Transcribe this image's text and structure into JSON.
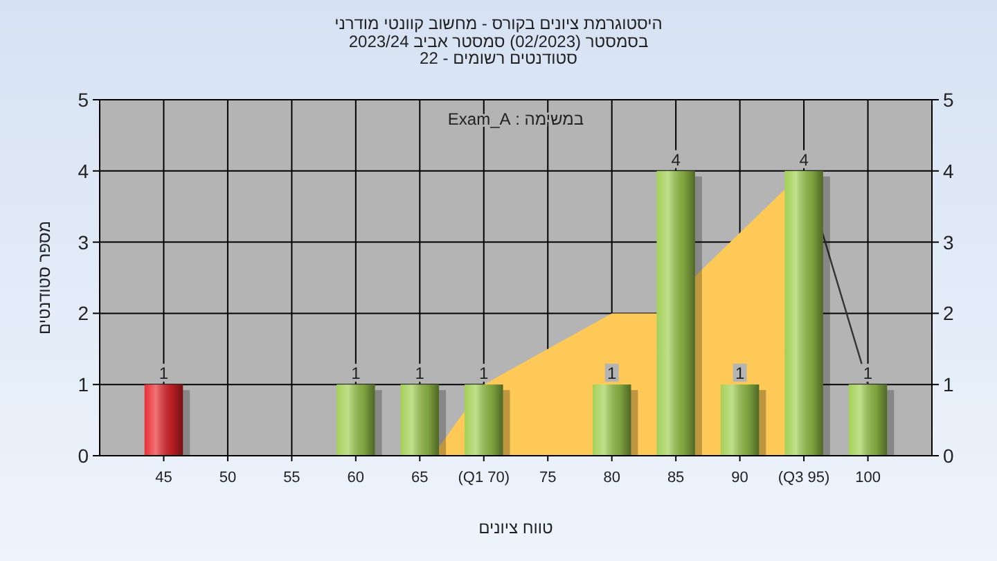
{
  "chart_data": {
    "type": "bar",
    "title": "היסטוגרמת ציונים בקורס - מחשוב קוונטי מודרני",
    "subtitle": "בסמסטר  (02/2023)  סמסטר אביב 2023/24\nסטודנטים רשומים - 22",
    "xlabel": "טווח ציונים",
    "ylabel": "מספר סטודנטים",
    "annotations": [
      "במשימה : Exam_A"
    ],
    "xlim": [
      40,
      105
    ],
    "xticks": [
      45,
      50,
      55,
      60,
      65,
      {
        "value": 70,
        "label": "(Q1 70)"
      },
      75,
      80,
      85,
      90,
      {
        "value": 95,
        "label": "(Q3 95)"
      },
      100
    ],
    "ylim": [
      0,
      5
    ],
    "yticks": [
      0,
      1,
      2,
      3,
      4,
      5
    ],
    "y2lim": [
      0,
      5
    ],
    "y2ticks": [
      0,
      1,
      2,
      3,
      4,
      5
    ],
    "grid": true,
    "series": [
      {
        "type": "area",
        "color": "#fec956",
        "x": [
          66,
          70,
          80,
          83.5,
          95
        ],
        "values": [
          0,
          1,
          2,
          2,
          4
        ]
      },
      {
        "x": [
          45,
          60,
          65,
          70,
          80,
          85,
          90,
          95,
          100
        ],
        "values": [
          1,
          1,
          1,
          1,
          1,
          4,
          1,
          4,
          1
        ],
        "value_labels": [
          "1",
          "1",
          "1",
          "1",
          "1",
          "4",
          "1",
          "4",
          "1"
        ],
        "colors": [
          "#e8262b",
          "#9fce4e",
          "#9fce4e",
          "#9fce4e",
          "#9fce4e",
          "#9fce4e",
          "#9fce4e",
          "#9fce4e",
          "#9fce4e"
        ]
      },
      {
        "type": "line",
        "color": "#333333",
        "x": [
          95,
          100
        ],
        "values": [
          4,
          1
        ]
      }
    ]
  }
}
